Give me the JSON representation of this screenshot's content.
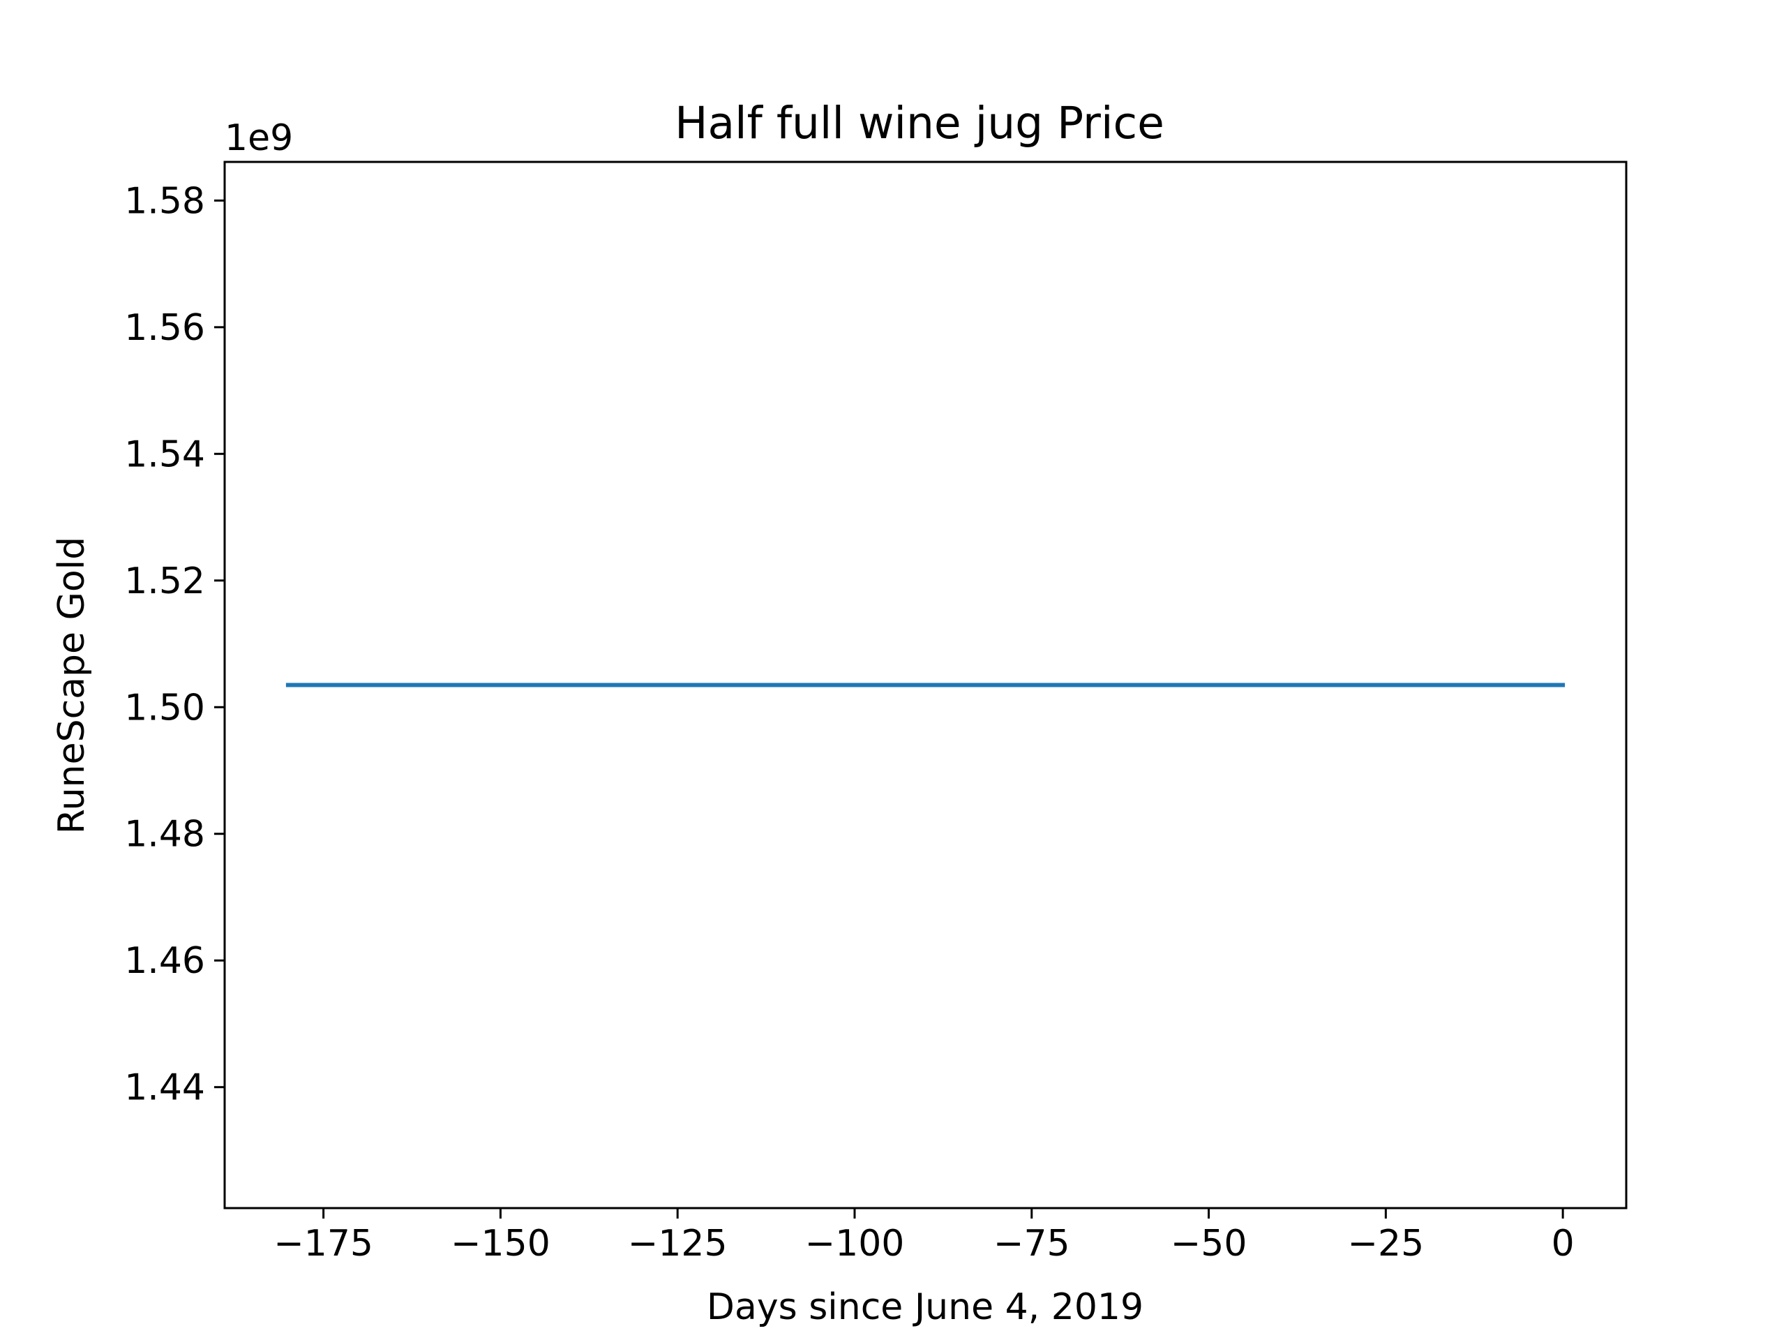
{
  "chart_data": {
    "type": "line",
    "title": "Half full wine jug Price",
    "xlabel": "Days since June 4, 2019",
    "ylabel": "RuneScape Gold",
    "y_offset_text": "1e9",
    "xlim": [
      -188.95,
      8.95
    ],
    "ylim": [
      1.4209,
      1.5861
    ],
    "x_ticks": [
      -175,
      -150,
      -125,
      -100,
      -75,
      -50,
      -25,
      0
    ],
    "x_tick_labels": [
      "−175",
      "−150",
      "−125",
      "−100",
      "−75",
      "−50",
      "−25",
      "0"
    ],
    "y_ticks": [
      1.44,
      1.46,
      1.48,
      1.5,
      1.52,
      1.54,
      1.56,
      1.58
    ],
    "y_tick_labels": [
      "1.44",
      "1.46",
      "1.48",
      "1.50",
      "1.52",
      "1.54",
      "1.56",
      "1.58"
    ],
    "grid": false,
    "series": [
      {
        "color": "#1f77b4",
        "x": [
          -180,
          0
        ],
        "y": [
          1.5035,
          1.5035
        ]
      }
    ]
  }
}
